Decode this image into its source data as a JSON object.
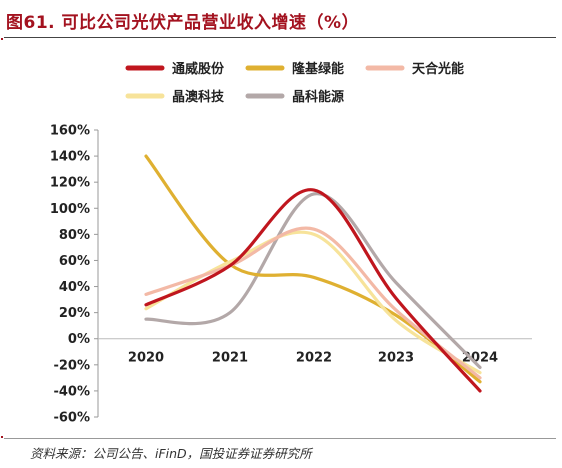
{
  "title": "图61. 可比公司光伏产品营业收入增速（%）",
  "source": "资料来源：公司公告、iFinD，国投证券证券研究所",
  "chart_data": {
    "type": "line",
    "x": [
      "2020",
      "2021",
      "2022",
      "2023",
      "2024"
    ],
    "y_ticks": [
      "160%",
      "140%",
      "120%",
      "100%",
      "80%",
      "60%",
      "40%",
      "20%",
      "0%",
      "-20%",
      "-40%",
      "-60%"
    ],
    "ylim": [
      -60,
      160
    ],
    "legend_position": "top",
    "series": [
      {
        "name": "通威股份",
        "color": "#c0161e",
        "values": [
          26,
          56,
          114,
          31,
          -40
        ]
      },
      {
        "name": "隆基绿能",
        "color": "#dfb031",
        "values": [
          140,
          57,
          47,
          18,
          -33
        ]
      },
      {
        "name": "天合光能",
        "color": "#f3b9a6",
        "values": [
          34,
          56,
          84,
          22,
          -30
        ]
      },
      {
        "name": "晶澳科技",
        "color": "#f7e39a",
        "values": [
          23,
          59,
          80,
          14,
          -26
        ]
      },
      {
        "name": "晶科能源",
        "color": "#b3a8a8",
        "values": [
          15,
          20,
          111,
          43,
          -22
        ]
      }
    ]
  }
}
